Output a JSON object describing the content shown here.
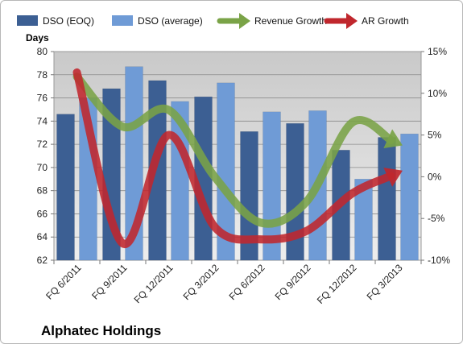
{
  "company_label": "Alphatec Holdings",
  "chart_data": {
    "type": "bar",
    "title": "",
    "categories": [
      "FQ 6/2011",
      "FQ 9/2011",
      "FQ 12/2011",
      "FQ 3/2012",
      "FQ 6/2012",
      "FQ 9/2012",
      "FQ 12/2012",
      "FQ 3/2013"
    ],
    "y_left": {
      "label": "Days",
      "range": [
        62,
        80
      ],
      "ticks": [
        62,
        64,
        66,
        68,
        70,
        72,
        74,
        76,
        78,
        80
      ]
    },
    "y_right": {
      "range": [
        -10,
        15
      ],
      "ticks": [
        -10,
        -5,
        0,
        5,
        10,
        15
      ],
      "tick_labels": [
        "-10%",
        "-5%",
        "0%",
        "5%",
        "10%",
        "15%"
      ]
    },
    "series": [
      {
        "name": "DSO (EOQ)",
        "kind": "bar",
        "axis": "left",
        "color": "#3c5f93",
        "values": [
          74.6,
          76.8,
          77.5,
          76.1,
          73.1,
          73.8,
          71.5,
          72.6
        ]
      },
      {
        "name": "DSO (average)",
        "kind": "bar",
        "axis": "left",
        "color": "#6f9bd6",
        "values": [
          76.0,
          78.7,
          75.7,
          77.3,
          74.8,
          74.9,
          69.0,
          72.9
        ]
      },
      {
        "name": "Revenue Growth",
        "kind": "line",
        "axis": "right",
        "color": "#7aa347",
        "values": [
          12.0,
          6.0,
          8.0,
          0.0,
          -5.5,
          -3.0,
          6.5,
          4.0
        ]
      },
      {
        "name": "AR Growth",
        "kind": "line",
        "axis": "right",
        "color": "#c0272d",
        "values": [
          12.5,
          -8.0,
          5.0,
          -6.0,
          -7.5,
          -6.5,
          -2.0,
          0.5
        ]
      }
    ],
    "grid": true,
    "legend_position": "top"
  }
}
